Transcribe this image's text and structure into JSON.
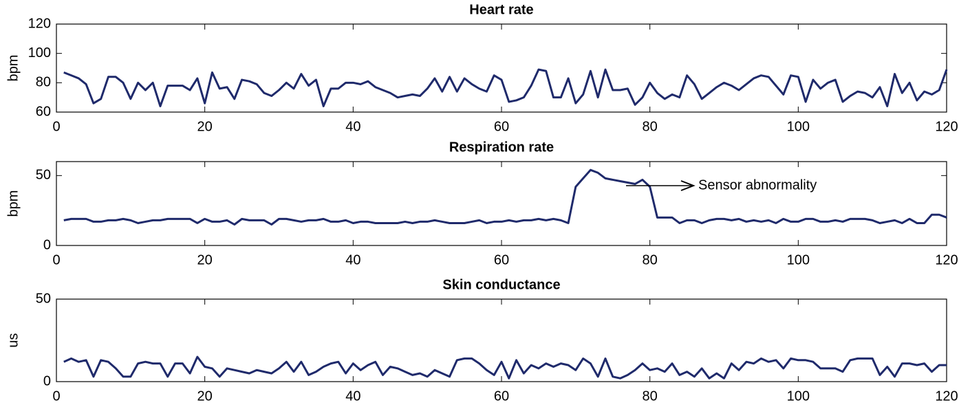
{
  "chart_data": [
    {
      "type": "line",
      "title": "Heart rate",
      "ylabel": "bpm",
      "x": [
        1,
        2,
        3,
        4,
        5,
        6,
        7,
        8,
        9,
        10,
        11,
        12,
        13,
        14,
        15,
        16,
        17,
        18,
        19,
        20,
        21,
        22,
        23,
        24,
        25,
        26,
        27,
        28,
        29,
        30,
        31,
        32,
        33,
        34,
        35,
        36,
        37,
        38,
        39,
        40,
        41,
        42,
        43,
        44,
        45,
        46,
        47,
        48,
        49,
        50,
        51,
        52,
        53,
        54,
        55,
        56,
        57,
        58,
        59,
        60,
        61,
        62,
        63,
        64,
        65,
        66,
        67,
        68,
        69,
        70,
        71,
        72,
        73,
        74,
        75,
        76,
        77,
        78,
        79,
        80,
        81,
        82,
        83,
        84,
        85,
        86,
        87,
        88,
        89,
        90,
        91,
        92,
        93,
        94,
        95,
        96,
        97,
        98,
        99,
        100,
        101,
        102,
        103,
        104,
        105,
        106,
        107,
        108,
        109,
        110,
        111,
        112,
        113,
        114,
        115,
        116,
        117,
        118,
        119,
        120
      ],
      "series": [
        {
          "color": "#1f2a6b",
          "values": [
            87,
            85,
            83,
            79,
            66,
            69,
            84,
            84,
            80,
            69,
            80,
            75,
            80,
            64,
            78,
            78,
            78,
            75,
            83,
            66,
            87,
            76,
            77,
            69,
            82,
            81,
            79,
            73,
            71,
            75,
            80,
            76,
            86,
            78,
            82,
            64,
            76,
            76,
            80,
            80,
            79,
            81,
            77,
            75,
            73,
            70,
            71,
            72,
            71,
            76,
            83,
            74,
            84,
            74,
            83,
            79,
            76,
            74,
            85,
            82,
            67,
            68,
            70,
            78,
            89,
            88,
            70,
            70,
            83,
            66,
            72,
            88,
            70,
            89,
            75,
            75,
            76,
            65,
            70,
            80,
            73,
            69,
            72,
            70,
            85,
            79,
            69,
            73,
            77,
            80,
            78,
            75,
            79,
            83,
            85,
            84,
            78,
            72,
            85,
            84,
            67,
            82,
            76,
            80,
            82,
            67,
            71,
            74,
            73,
            70,
            77,
            64,
            86,
            73,
            80,
            68,
            74,
            72,
            75,
            89
          ]
        }
      ],
      "xlim": [
        0,
        120
      ],
      "xticks": [
        0,
        20,
        40,
        60,
        80,
        100,
        120
      ],
      "ylim": [
        60,
        120
      ],
      "yticks": [
        60,
        80,
        100,
        120
      ]
    },
    {
      "type": "line",
      "title": "Respiration rate",
      "ylabel": "bpm",
      "x": [
        1,
        2,
        3,
        4,
        5,
        6,
        7,
        8,
        9,
        10,
        11,
        12,
        13,
        14,
        15,
        16,
        17,
        18,
        19,
        20,
        21,
        22,
        23,
        24,
        25,
        26,
        27,
        28,
        29,
        30,
        31,
        32,
        33,
        34,
        35,
        36,
        37,
        38,
        39,
        40,
        41,
        42,
        43,
        44,
        45,
        46,
        47,
        48,
        49,
        50,
        51,
        52,
        53,
        54,
        55,
        56,
        57,
        58,
        59,
        60,
        61,
        62,
        63,
        64,
        65,
        66,
        67,
        68,
        69,
        70,
        71,
        72,
        73,
        74,
        75,
        76,
        77,
        78,
        79,
        80,
        81,
        82,
        83,
        84,
        85,
        86,
        87,
        88,
        89,
        90,
        91,
        92,
        93,
        94,
        95,
        96,
        97,
        98,
        99,
        100,
        101,
        102,
        103,
        104,
        105,
        106,
        107,
        108,
        109,
        110,
        111,
        112,
        113,
        114,
        115,
        116,
        117,
        118,
        119,
        120
      ],
      "series": [
        {
          "color": "#1f2a6b",
          "values": [
            18,
            19,
            19,
            19,
            17,
            17,
            18,
            18,
            19,
            18,
            16,
            17,
            18,
            18,
            19,
            19,
            19,
            19,
            16,
            19,
            17,
            17,
            18,
            15,
            19,
            18,
            18,
            18,
            15,
            19,
            19,
            18,
            17,
            18,
            18,
            19,
            17,
            17,
            18,
            16,
            17,
            17,
            16,
            16,
            16,
            16,
            17,
            16,
            17,
            17,
            18,
            17,
            16,
            16,
            16,
            17,
            18,
            16,
            17,
            17,
            18,
            17,
            18,
            18,
            19,
            18,
            19,
            18,
            16,
            42,
            48,
            54,
            52,
            48,
            47,
            46,
            45,
            44,
            47,
            42,
            20,
            20,
            20,
            16,
            18,
            18,
            16,
            18,
            19,
            19,
            18,
            19,
            17,
            18,
            17,
            18,
            16,
            19,
            17,
            17,
            19,
            19,
            17,
            17,
            18,
            17,
            19,
            19,
            19,
            18,
            16,
            17,
            18,
            16,
            19,
            16,
            16,
            22,
            22,
            20
          ]
        }
      ],
      "xlim": [
        0,
        120
      ],
      "xticks": [
        0,
        20,
        40,
        60,
        80,
        100,
        120
      ],
      "ylim": [
        0,
        60
      ],
      "yticks": [
        0,
        50
      ],
      "annotations": [
        {
          "text": "Sensor abnormality"
        }
      ]
    },
    {
      "type": "line",
      "title": "Skin conductance",
      "ylabel": "us",
      "x": [
        1,
        2,
        3,
        4,
        5,
        6,
        7,
        8,
        9,
        10,
        11,
        12,
        13,
        14,
        15,
        16,
        17,
        18,
        19,
        20,
        21,
        22,
        23,
        24,
        25,
        26,
        27,
        28,
        29,
        30,
        31,
        32,
        33,
        34,
        35,
        36,
        37,
        38,
        39,
        40,
        41,
        42,
        43,
        44,
        45,
        46,
        47,
        48,
        49,
        50,
        51,
        52,
        53,
        54,
        55,
        56,
        57,
        58,
        59,
        60,
        61,
        62,
        63,
        64,
        65,
        66,
        67,
        68,
        69,
        70,
        71,
        72,
        73,
        74,
        75,
        76,
        77,
        78,
        79,
        80,
        81,
        82,
        83,
        84,
        85,
        86,
        87,
        88,
        89,
        90,
        91,
        92,
        93,
        94,
        95,
        96,
        97,
        98,
        99,
        100,
        101,
        102,
        103,
        104,
        105,
        106,
        107,
        108,
        109,
        110,
        111,
        112,
        113,
        114,
        115,
        116,
        117,
        118,
        119,
        120
      ],
      "series": [
        {
          "color": "#1f2a6b",
          "values": [
            12,
            14,
            12,
            13,
            3,
            13,
            12,
            8,
            3,
            3,
            11,
            12,
            11,
            11,
            3,
            11,
            11,
            5,
            15,
            9,
            8,
            3,
            8,
            7,
            6,
            5,
            7,
            6,
            5,
            8,
            12,
            6,
            12,
            4,
            6,
            9,
            11,
            12,
            5,
            11,
            7,
            10,
            12,
            4,
            9,
            8,
            6,
            4,
            5,
            3,
            7,
            5,
            3,
            13,
            14,
            14,
            11,
            7,
            4,
            12,
            2,
            13,
            5,
            10,
            8,
            11,
            9,
            11,
            10,
            7,
            14,
            11,
            3,
            14,
            3,
            2,
            4,
            7,
            11,
            7,
            8,
            6,
            11,
            4,
            6,
            3,
            8,
            2,
            5,
            2,
            11,
            7,
            12,
            11,
            14,
            12,
            13,
            8,
            14,
            13,
            13,
            12,
            8,
            8,
            8,
            6,
            13,
            14,
            14,
            14,
            4,
            9,
            3,
            11,
            11,
            10,
            11,
            6,
            10,
            10
          ]
        }
      ],
      "xlim": [
        0,
        120
      ],
      "xticks": [
        0,
        20,
        40,
        60,
        80,
        100,
        120
      ],
      "ylim": [
        0,
        50
      ],
      "yticks": [
        0,
        50
      ]
    }
  ]
}
